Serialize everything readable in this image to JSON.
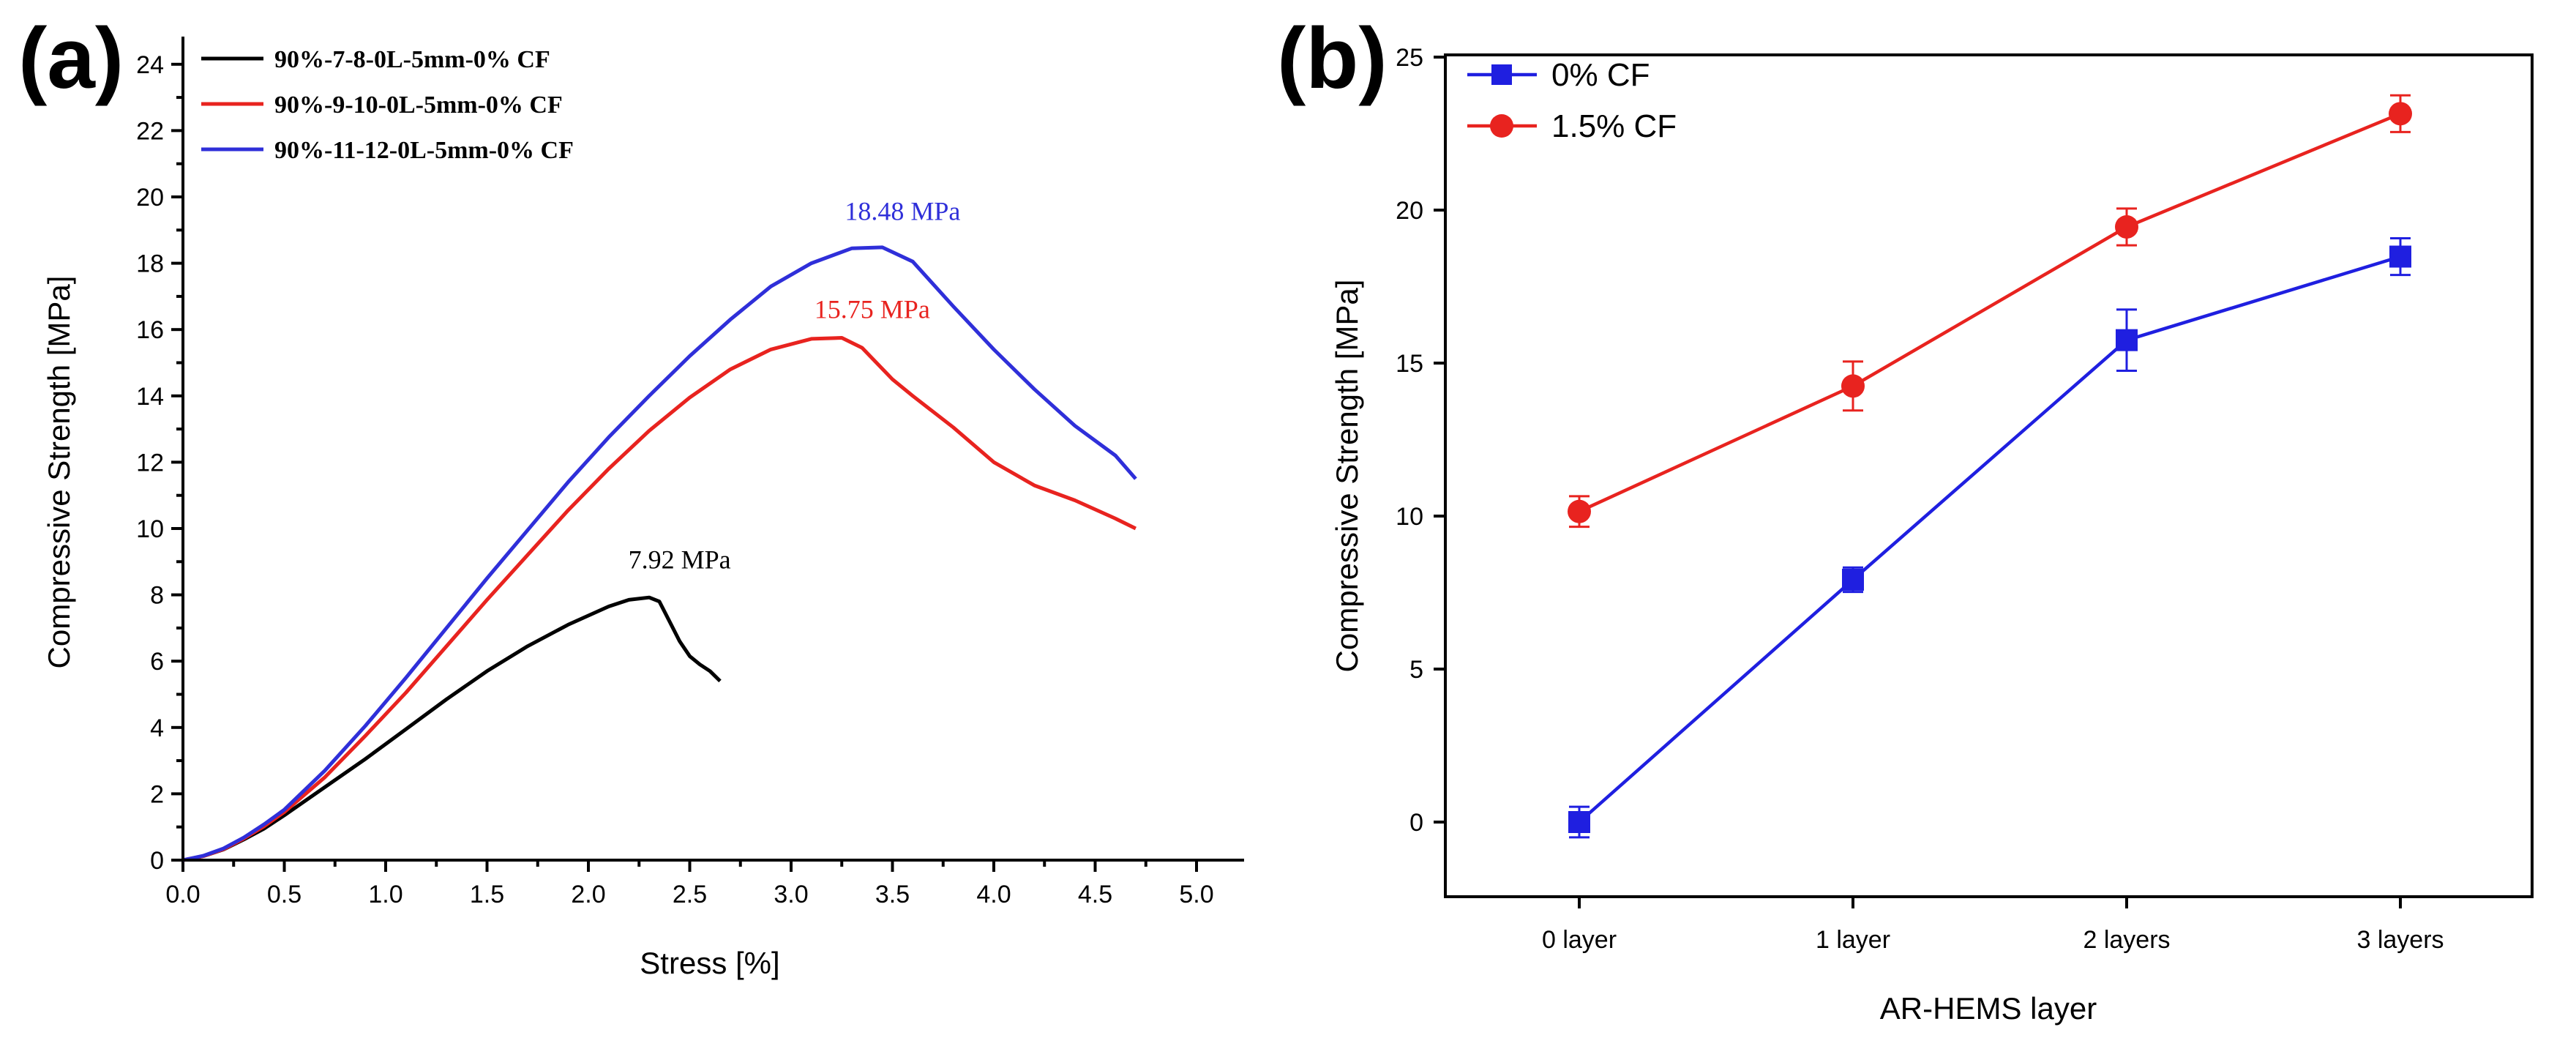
{
  "chart_data": [
    {
      "panel_label": "(a)",
      "type": "line",
      "title": "",
      "xlabel": "Stress [%]",
      "ylabel": "Compressive Strength [MPa]",
      "xlim": [
        0.0,
        5.0
      ],
      "ylim": [
        0,
        24
      ],
      "x_ticks": [
        "0.0",
        "0.5",
        "1.0",
        "1.5",
        "2.0",
        "2.5",
        "3.0",
        "3.5",
        "4.0",
        "4.5",
        "5.0"
      ],
      "y_ticks": [
        "0",
        "2",
        "4",
        "6",
        "8",
        "10",
        "12",
        "14",
        "16",
        "18",
        "20",
        "22",
        "24"
      ],
      "legend_position": "top-left",
      "series": [
        {
          "name": "90%-7-8-0L-5mm-0% CF",
          "color": "#000000",
          "x": [
            0.0,
            0.1,
            0.2,
            0.3,
            0.4,
            0.5,
            0.7,
            0.9,
            1.1,
            1.3,
            1.5,
            1.7,
            1.9,
            2.1,
            2.2,
            2.3,
            2.35,
            2.4,
            2.45,
            2.5,
            2.55,
            2.6,
            2.65
          ],
          "values": [
            0.0,
            0.12,
            0.32,
            0.62,
            0.95,
            1.35,
            2.2,
            3.05,
            3.95,
            4.85,
            5.7,
            6.45,
            7.1,
            7.65,
            7.85,
            7.92,
            7.8,
            7.2,
            6.6,
            6.15,
            5.9,
            5.7,
            5.4
          ],
          "annotation": "7.92 MPa",
          "annotation_x": 2.45,
          "annotation_y": 8.8
        },
        {
          "name": "90%-9-10-0L-5mm-0% CF",
          "color": "#e8231f",
          "x": [
            0.0,
            0.1,
            0.2,
            0.3,
            0.4,
            0.5,
            0.7,
            0.9,
            1.1,
            1.3,
            1.5,
            1.7,
            1.9,
            2.1,
            2.3,
            2.5,
            2.7,
            2.9,
            3.1,
            3.25,
            3.35,
            3.5,
            3.6,
            3.8,
            4.0,
            4.2,
            4.4,
            4.6,
            4.7
          ],
          "values": [
            0.0,
            0.12,
            0.33,
            0.65,
            1.02,
            1.45,
            2.5,
            3.75,
            5.05,
            6.45,
            7.85,
            9.2,
            10.55,
            11.8,
            12.95,
            13.95,
            14.8,
            15.4,
            15.72,
            15.75,
            15.45,
            14.5,
            14.0,
            13.05,
            12.0,
            11.3,
            10.85,
            10.3,
            10.0
          ],
          "annotation": "15.75 MPa",
          "annotation_x": 3.4,
          "annotation_y": 16.35
        },
        {
          "name": "90%-11-12-0L-5mm-0% CF",
          "color": "#2f2fd9",
          "x": [
            0.0,
            0.1,
            0.2,
            0.3,
            0.4,
            0.5,
            0.7,
            0.9,
            1.1,
            1.3,
            1.5,
            1.7,
            1.9,
            2.1,
            2.3,
            2.5,
            2.7,
            2.9,
            3.1,
            3.3,
            3.45,
            3.6,
            3.8,
            4.0,
            4.2,
            4.4,
            4.6,
            4.7
          ],
          "values": [
            0.0,
            0.13,
            0.35,
            0.68,
            1.08,
            1.52,
            2.7,
            4.05,
            5.5,
            7.0,
            8.5,
            9.95,
            11.4,
            12.75,
            14.0,
            15.2,
            16.3,
            17.3,
            18.0,
            18.45,
            18.48,
            18.05,
            16.7,
            15.4,
            14.2,
            13.1,
            12.2,
            11.5
          ],
          "annotation": "18.48 MPa",
          "annotation_x": 3.55,
          "annotation_y": 19.3
        }
      ]
    },
    {
      "panel_label": "(b)",
      "type": "line",
      "title": "",
      "xlabel": "AR-HEMS layer",
      "ylabel": "Compressive Strength [MPa]",
      "categories": [
        "0 layer",
        "1 layer",
        "2 layers",
        "3 layers"
      ],
      "ylim": [
        -2.5,
        25
      ],
      "y_ticks": [
        "0",
        "5",
        "10",
        "15",
        "20",
        "25"
      ],
      "legend_position": "top-left",
      "series": [
        {
          "name": "0% CF",
          "color": "#1f1fe0",
          "marker": "square",
          "values": [
            0.0,
            7.92,
            15.75,
            18.48
          ],
          "errors": [
            0.5,
            0.4,
            1.0,
            0.6
          ]
        },
        {
          "name": "1.5% CF",
          "color": "#e8231f",
          "marker": "circle",
          "values": [
            10.15,
            14.25,
            19.45,
            23.15
          ],
          "errors": [
            0.5,
            0.8,
            0.6,
            0.6
          ]
        }
      ]
    }
  ]
}
